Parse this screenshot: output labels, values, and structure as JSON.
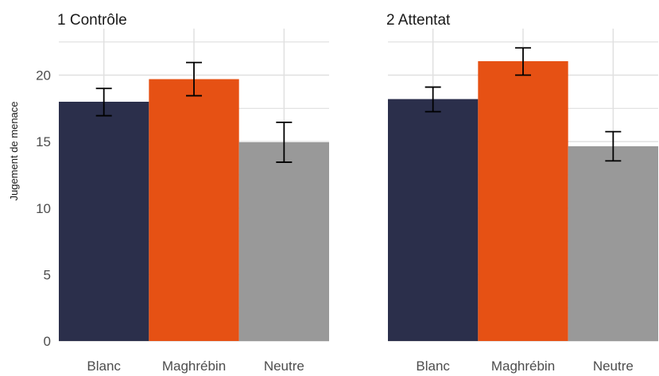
{
  "chart_data": {
    "type": "bar",
    "ylabel": "Jugement de menace",
    "ylim": [
      0,
      23.5
    ],
    "yticks": [
      0,
      5,
      10,
      15,
      20
    ],
    "grid": true,
    "categories": [
      "Blanc",
      "Maghrébin",
      "Neutre"
    ],
    "colors": {
      "Blanc": "#2b2f4b",
      "Maghrébin": "#e65114",
      "Neutre": "#999999"
    },
    "panels": [
      {
        "title": "1 Contrôle",
        "values": [
          18.0,
          19.7,
          14.95
        ],
        "error_low": [
          16.95,
          18.45,
          13.45
        ],
        "error_high": [
          19.0,
          20.95,
          16.45
        ]
      },
      {
        "title": "2 Attentat",
        "values": [
          18.2,
          21.05,
          14.65
        ],
        "error_low": [
          17.25,
          20.0,
          13.55
        ],
        "error_high": [
          19.1,
          22.05,
          15.75
        ]
      }
    ]
  }
}
